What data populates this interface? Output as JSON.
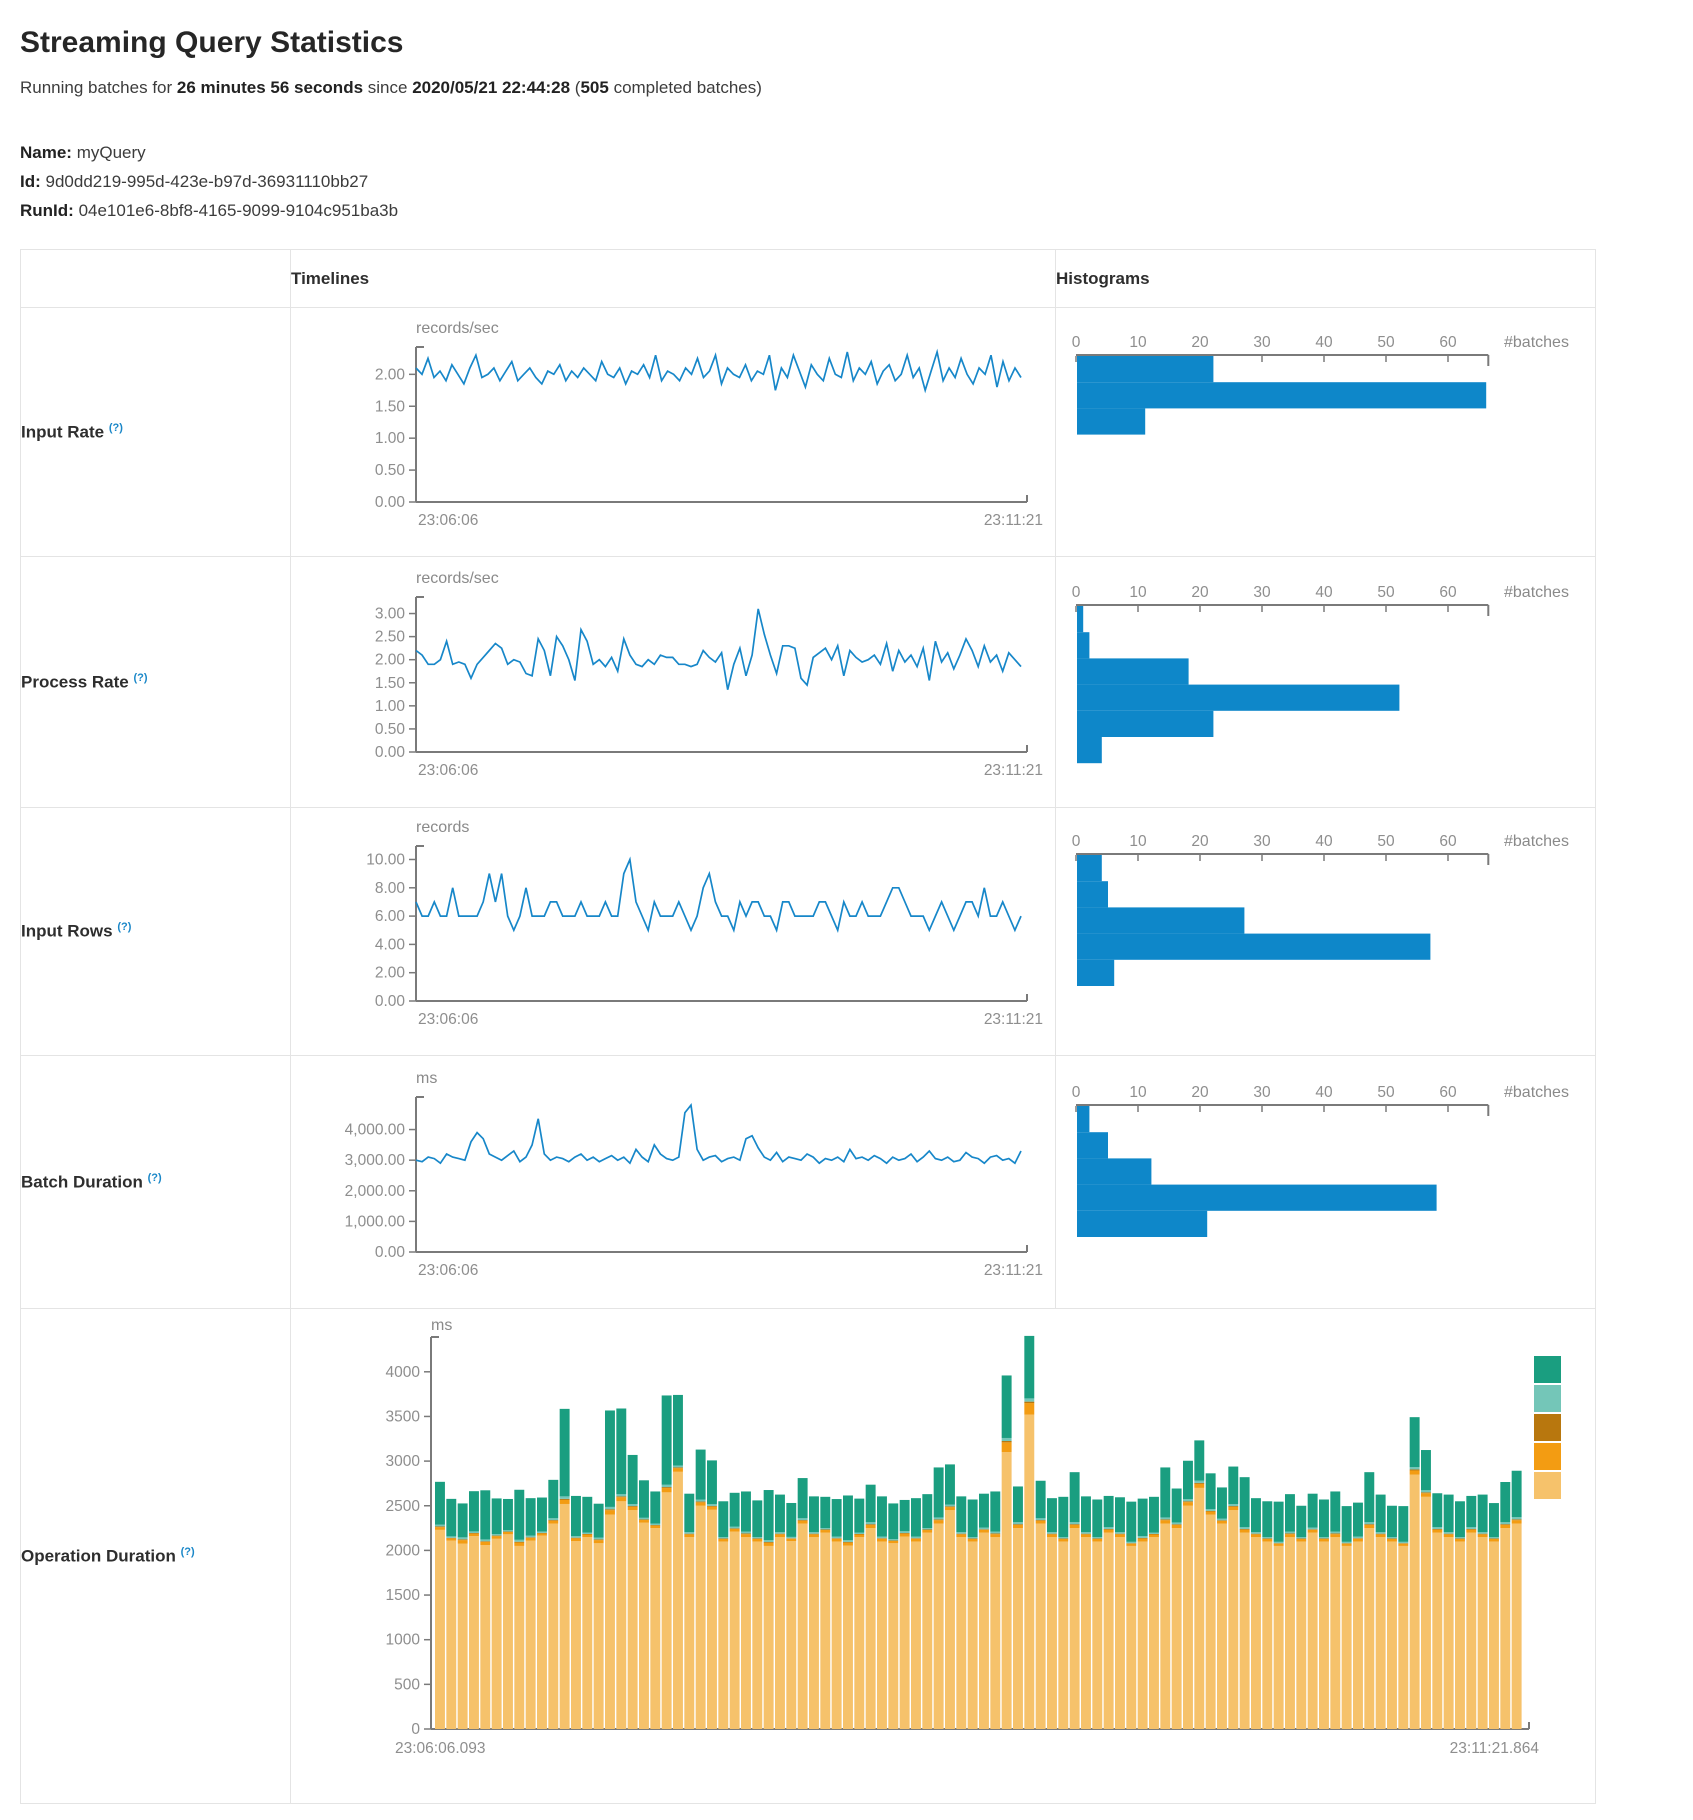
{
  "page": {
    "title": "Streaming Query Statistics"
  },
  "status": {
    "prefix": "Running batches for",
    "duration": "26 minutes 56 seconds",
    "since": "since",
    "timestamp": "2020/05/21 22:44:28",
    "paren_open": "(",
    "batch_count": "505",
    "suffix": "completed batches)"
  },
  "query": {
    "name_label": "Name:",
    "name": "myQuery",
    "id_label": "Id:",
    "id": "9d0dd219-995d-423e-b97d-36931110bb27",
    "runid_label": "RunId:",
    "runid": "04e101e6-8bf8-4165-9099-9104c951ba3b"
  },
  "table": {
    "col_timelines": "Timelines",
    "col_histograms": "Histograms"
  },
  "help_marker": "(?)",
  "colors": {
    "line_blue": "#1787C9",
    "hist_blue": "#0E87C9",
    "axis": "#7a7a7a",
    "tick_text": "#8e8e8e"
  },
  "chart_data": [
    {
      "name": "input_rate",
      "type": "line",
      "title": "Input Rate",
      "ylabel": "records/sec",
      "x_range": [
        "23:06:06",
        "23:11:21"
      ],
      "ylim": [
        0,
        2.35
      ],
      "yticks": [
        {
          "v": 2.0,
          "label": "2.00"
        },
        {
          "v": 1.5,
          "label": "1.50"
        },
        {
          "v": 1.0,
          "label": "1.00"
        },
        {
          "v": 0.5,
          "label": "0.50"
        },
        {
          "v": 0.0,
          "label": "0.00"
        }
      ],
      "values": [
        2.1,
        2.0,
        2.25,
        1.95,
        2.05,
        1.9,
        2.15,
        2.0,
        1.85,
        2.1,
        2.3,
        1.95,
        2.0,
        2.1,
        1.9,
        2.05,
        2.2,
        1.9,
        2.0,
        2.1,
        1.95,
        1.85,
        2.05,
        2.0,
        2.15,
        1.9,
        2.05,
        1.95,
        2.1,
        2.0,
        1.9,
        2.2,
        2.0,
        1.95,
        2.1,
        1.85,
        2.05,
        2.0,
        2.15,
        1.95,
        2.3,
        1.9,
        2.05,
        2.0,
        1.9,
        2.1,
        2.0,
        2.25,
        1.95,
        2.05,
        2.3,
        1.85,
        2.1,
        2.0,
        1.95,
        2.15,
        1.9,
        2.05,
        2.0,
        2.3,
        1.75,
        2.1,
        1.95,
        2.3,
        2.05,
        1.8,
        2.15,
        2.0,
        1.9,
        2.25,
        2.0,
        1.95,
        2.35,
        1.9,
        2.1,
        2.0,
        2.2,
        1.85,
        2.05,
        2.15,
        1.9,
        2.0,
        2.3,
        1.95,
        2.1,
        1.75,
        2.05,
        2.35,
        1.9,
        2.1,
        1.95,
        2.25,
        2.0,
        1.85,
        2.1,
        2.0,
        2.3,
        1.8,
        2.2,
        1.9,
        2.1,
        1.95
      ],
      "histogram": {
        "orientation": "horizontal",
        "xlabel": "#batches",
        "xticks": [
          0,
          10,
          20,
          30,
          40,
          50,
          60
        ],
        "bin_counts": [
          22,
          66,
          11
        ]
      }
    },
    {
      "name": "process_rate",
      "type": "line",
      "title": "Process Rate",
      "ylabel": "records/sec",
      "x_range": [
        "23:06:06",
        "23:11:21"
      ],
      "ylim": [
        0,
        3.25
      ],
      "yticks": [
        {
          "v": 3.0,
          "label": "3.00"
        },
        {
          "v": 2.5,
          "label": "2.50"
        },
        {
          "v": 2.0,
          "label": "2.00"
        },
        {
          "v": 1.5,
          "label": "1.50"
        },
        {
          "v": 1.0,
          "label": "1.00"
        },
        {
          "v": 0.5,
          "label": "0.50"
        },
        {
          "v": 0.0,
          "label": "0.00"
        }
      ],
      "values": [
        2.2,
        2.1,
        1.9,
        1.9,
        2.0,
        2.4,
        1.9,
        1.95,
        1.9,
        1.6,
        1.9,
        2.05,
        2.2,
        2.35,
        2.25,
        1.9,
        2.0,
        1.95,
        1.7,
        1.65,
        2.45,
        2.2,
        1.65,
        2.5,
        2.3,
        2.0,
        1.55,
        2.65,
        2.4,
        1.9,
        2.0,
        1.85,
        2.05,
        1.75,
        2.45,
        2.1,
        1.9,
        1.85,
        2.0,
        1.9,
        2.1,
        2.05,
        2.05,
        1.9,
        1.9,
        1.85,
        1.9,
        2.2,
        2.05,
        1.95,
        2.15,
        1.35,
        1.9,
        2.25,
        1.65,
        2.1,
        3.1,
        2.55,
        2.1,
        1.7,
        2.3,
        2.3,
        2.25,
        1.6,
        1.45,
        2.05,
        2.15,
        2.25,
        2.0,
        2.3,
        1.65,
        2.2,
        2.05,
        1.95,
        2.0,
        2.1,
        1.9,
        2.35,
        1.75,
        2.2,
        1.95,
        2.1,
        1.85,
        2.25,
        1.55,
        2.4,
        1.95,
        2.15,
        1.8,
        2.1,
        2.45,
        2.2,
        1.85,
        2.3,
        1.95,
        2.1,
        1.75,
        2.15,
        2.0,
        1.85
      ],
      "histogram": {
        "orientation": "horizontal",
        "xlabel": "#batches",
        "xticks": [
          0,
          10,
          20,
          30,
          40,
          50,
          60
        ],
        "bin_counts": [
          1,
          2,
          18,
          52,
          22,
          4
        ]
      }
    },
    {
      "name": "input_rows",
      "type": "line",
      "title": "Input Rows",
      "ylabel": "records",
      "x_range": [
        "23:06:06",
        "23:11:21"
      ],
      "ylim": [
        0,
        10.6
      ],
      "yticks": [
        {
          "v": 10,
          "label": "10.00"
        },
        {
          "v": 8,
          "label": "8.00"
        },
        {
          "v": 6,
          "label": "6.00"
        },
        {
          "v": 4,
          "label": "4.00"
        },
        {
          "v": 2,
          "label": "2.00"
        },
        {
          "v": 0,
          "label": "0.00"
        }
      ],
      "values": [
        7,
        6,
        6,
        7,
        6,
        6,
        8,
        6,
        6,
        6,
        6,
        7,
        9,
        7,
        9,
        6,
        5,
        6,
        8,
        6,
        6,
        6,
        7,
        7,
        6,
        6,
        6,
        7,
        6,
        6,
        6,
        7,
        6,
        6,
        9,
        10,
        7,
        6,
        5,
        7,
        6,
        6,
        6,
        7,
        6,
        5,
        6,
        8,
        9,
        7,
        6,
        6,
        5,
        7,
        6,
        7,
        7,
        6,
        6,
        5,
        7,
        7,
        6,
        6,
        6,
        6,
        7,
        7,
        6,
        5,
        7,
        6,
        6,
        7,
        6,
        6,
        6,
        7,
        8,
        8,
        7,
        6,
        6,
        6,
        5,
        6,
        7,
        6,
        5,
        6,
        7,
        7,
        6,
        8,
        6,
        6,
        7,
        6,
        5,
        6
      ],
      "histogram": {
        "orientation": "horizontal",
        "xlabel": "#batches",
        "xticks": [
          0,
          10,
          20,
          30,
          40,
          50,
          60
        ],
        "bin_counts": [
          4,
          5,
          27,
          57,
          6
        ]
      }
    },
    {
      "name": "batch_duration",
      "type": "line",
      "title": "Batch Duration",
      "ylabel": "ms",
      "x_range": [
        "23:06:06",
        "23:11:21"
      ],
      "ylim": [
        0,
        4900
      ],
      "yticks": [
        {
          "v": 4000,
          "label": "4,000.00"
        },
        {
          "v": 3000,
          "label": "3,000.00"
        },
        {
          "v": 2000,
          "label": "2,000.00"
        },
        {
          "v": 1000,
          "label": "1,000.00"
        },
        {
          "v": 0,
          "label": "0.00"
        }
      ],
      "values": [
        3000,
        2950,
        3100,
        3050,
        2900,
        3200,
        3100,
        3050,
        3000,
        3600,
        3900,
        3700,
        3200,
        3100,
        3000,
        3150,
        3300,
        2950,
        3100,
        3500,
        4350,
        3200,
        3000,
        3100,
        3050,
        2950,
        3100,
        3200,
        3000,
        3100,
        2950,
        3050,
        3150,
        3000,
        3100,
        2900,
        3350,
        3100,
        2950,
        3500,
        3200,
        3050,
        3000,
        3100,
        4550,
        4800,
        3350,
        3000,
        3100,
        3150,
        2950,
        3050,
        3100,
        3000,
        3700,
        3800,
        3400,
        3100,
        3000,
        3250,
        2950,
        3100,
        3050,
        3000,
        3200,
        3100,
        2900,
        3050,
        3000,
        3100,
        2950,
        3350,
        3050,
        3100,
        3000,
        3150,
        3050,
        2900,
        3100,
        3000,
        3050,
        3200,
        2950,
        3100,
        3300,
        3050,
        3000,
        3100,
        2950,
        3000,
        3250,
        3100,
        3050,
        2900,
        3100,
        3150,
        3000,
        3050,
        2900,
        3300
      ],
      "histogram": {
        "orientation": "horizontal",
        "xlabel": "#batches",
        "xticks": [
          0,
          10,
          20,
          30,
          40,
          50,
          60
        ],
        "bin_counts": [
          2,
          5,
          12,
          58,
          21
        ]
      }
    },
    {
      "name": "operation_duration",
      "type": "stacked-bar",
      "title": "Operation Duration",
      "ylabel": "ms",
      "x_range": [
        "23:06:06.093",
        "23:11:21.864"
      ],
      "ylim": [
        0,
        4400
      ],
      "yticks": [
        {
          "v": 4000,
          "label": "4000"
        },
        {
          "v": 3500,
          "label": "3500"
        },
        {
          "v": 3000,
          "label": "3000"
        },
        {
          "v": 2500,
          "label": "2500"
        },
        {
          "v": 2000,
          "label": "2000"
        },
        {
          "v": 1500,
          "label": "1500"
        },
        {
          "v": 1000,
          "label": "1000"
        },
        {
          "v": 500,
          "label": "500"
        },
        {
          "v": 0,
          "label": "0"
        }
      ],
      "legend_colors_top_to_bottom": [
        "#1A9E80",
        "#74C6B8",
        "#B8770E",
        "#F39C12",
        "#F6C26B"
      ],
      "series": [
        {
          "name": "light-orange",
          "color": "#F6C26B",
          "values": [
            2230,
            2110,
            2075,
            2160,
            2060,
            2130,
            2180,
            2050,
            2110,
            2165,
            2300,
            2520,
            2105,
            2150,
            2080,
            2400,
            2550,
            2450,
            2310,
            2250,
            2650,
            2880,
            2150,
            2500,
            2455,
            2100,
            2210,
            2150,
            2100,
            2050,
            2150,
            2105,
            2300,
            2150,
            2200,
            2100,
            2055,
            2150,
            2250,
            2100,
            2080,
            2155,
            2100,
            2200,
            2300,
            2450,
            2150,
            2100,
            2200,
            2150,
            3100,
            2250,
            3520,
            2300,
            2150,
            2100,
            2250,
            2150,
            2100,
            2200,
            2150,
            2050,
            2100,
            2150,
            2300,
            2250,
            2500,
            2700,
            2400,
            2300,
            2450,
            2200,
            2150,
            2100,
            2050,
            2150,
            2100,
            2200,
            2100,
            2150,
            2050,
            2100,
            2250,
            2150,
            2100,
            2050,
            2850,
            2600,
            2200,
            2150,
            2100,
            2200,
            2150,
            2100,
            2250,
            2300
          ]
        },
        {
          "name": "orange",
          "color": "#F39C12",
          "values": [
            30,
            25,
            40,
            28,
            35,
            30,
            26,
            38,
            30,
            25,
            32,
            45,
            30,
            28,
            35,
            50,
            45,
            38,
            30,
            28,
            48,
            40,
            30,
            38,
            35,
            28,
            30,
            32,
            28,
            35,
            30,
            26,
            32,
            30,
            28,
            30,
            32,
            28,
            35,
            30,
            26,
            32,
            30,
            28,
            38,
            35,
            30,
            28,
            30,
            32,
            110,
            35,
            130,
            32,
            30,
            28,
            35,
            30,
            28,
            32,
            30,
            26,
            32,
            28,
            38,
            35,
            40,
            45,
            35,
            30,
            38,
            32,
            30,
            28,
            26,
            32,
            28,
            30,
            28,
            32,
            26,
            30,
            35,
            30,
            28,
            26,
            45,
            40,
            32,
            30,
            28,
            32,
            30,
            28,
            35,
            38
          ]
        },
        {
          "name": "dark-ochre",
          "color": "#B8770E",
          "values": [
            8,
            6,
            9,
            7,
            8,
            6,
            5,
            9,
            7,
            6,
            8,
            12,
            7,
            6,
            8,
            11,
            10,
            9,
            7,
            6,
            11,
            9,
            7,
            9,
            8,
            6,
            7,
            8,
            6,
            9,
            7,
            5,
            8,
            7,
            6,
            7,
            8,
            6,
            9,
            7,
            5,
            8,
            7,
            6,
            9,
            8,
            7,
            6,
            7,
            8,
            15,
            9,
            16,
            8,
            7,
            6,
            9,
            7,
            6,
            8,
            7,
            5,
            8,
            6,
            9,
            8,
            10,
            11,
            8,
            7,
            9,
            8,
            7,
            6,
            5,
            8,
            6,
            7,
            6,
            8,
            5,
            7,
            9,
            7,
            6,
            5,
            11,
            10,
            8,
            7,
            6,
            8,
            7,
            6,
            9,
            10
          ]
        },
        {
          "name": "light-teal",
          "color": "#74C6B8",
          "values": [
            20,
            16,
            22,
            18,
            20,
            16,
            15,
            22,
            18,
            16,
            20,
            28,
            18,
            16,
            20,
            26,
            24,
            22,
            18,
            16,
            26,
            22,
            18,
            22,
            20,
            16,
            18,
            20,
            16,
            22,
            18,
            15,
            20,
            18,
            16,
            18,
            20,
            16,
            22,
            18,
            15,
            20,
            18,
            16,
            22,
            20,
            18,
            16,
            18,
            20,
            34,
            22,
            36,
            20,
            18,
            16,
            22,
            18,
            16,
            20,
            18,
            15,
            20,
            16,
            22,
            20,
            24,
            26,
            20,
            18,
            22,
            20,
            18,
            16,
            15,
            20,
            16,
            18,
            16,
            20,
            15,
            18,
            22,
            18,
            16,
            15,
            26,
            24,
            20,
            18,
            16,
            20,
            18,
            16,
            22,
            24
          ]
        },
        {
          "name": "green",
          "color": "#1A9E80",
          "values": [
            480,
            420,
            380,
            450,
            550,
            400,
            350,
            560,
            420,
            380,
            430,
            980,
            450,
            400,
            380,
            1080,
            960,
            550,
            420,
            360,
            1000,
            790,
            430,
            560,
            490,
            400,
            380,
            450,
            410,
            560,
            420,
            380,
            450,
            400,
            350,
            420,
            500,
            380,
            420,
            450,
            400,
            350,
            430,
            380,
            560,
            450,
            400,
            420,
            380,
            450,
            700,
            400,
            700,
            420,
            380,
            450,
            560,
            400,
            420,
            350,
            390,
            450,
            420,
            400,
            560,
            380,
            430,
            450,
            400,
            350,
            420,
            560,
            380,
            400,
            450,
            420,
            350,
            380,
            420,
            450,
            400,
            380,
            560,
            420,
            350,
            400,
            560,
            450,
            380,
            420,
            400,
            350,
            420,
            380,
            450,
            520
          ]
        }
      ]
    }
  ]
}
